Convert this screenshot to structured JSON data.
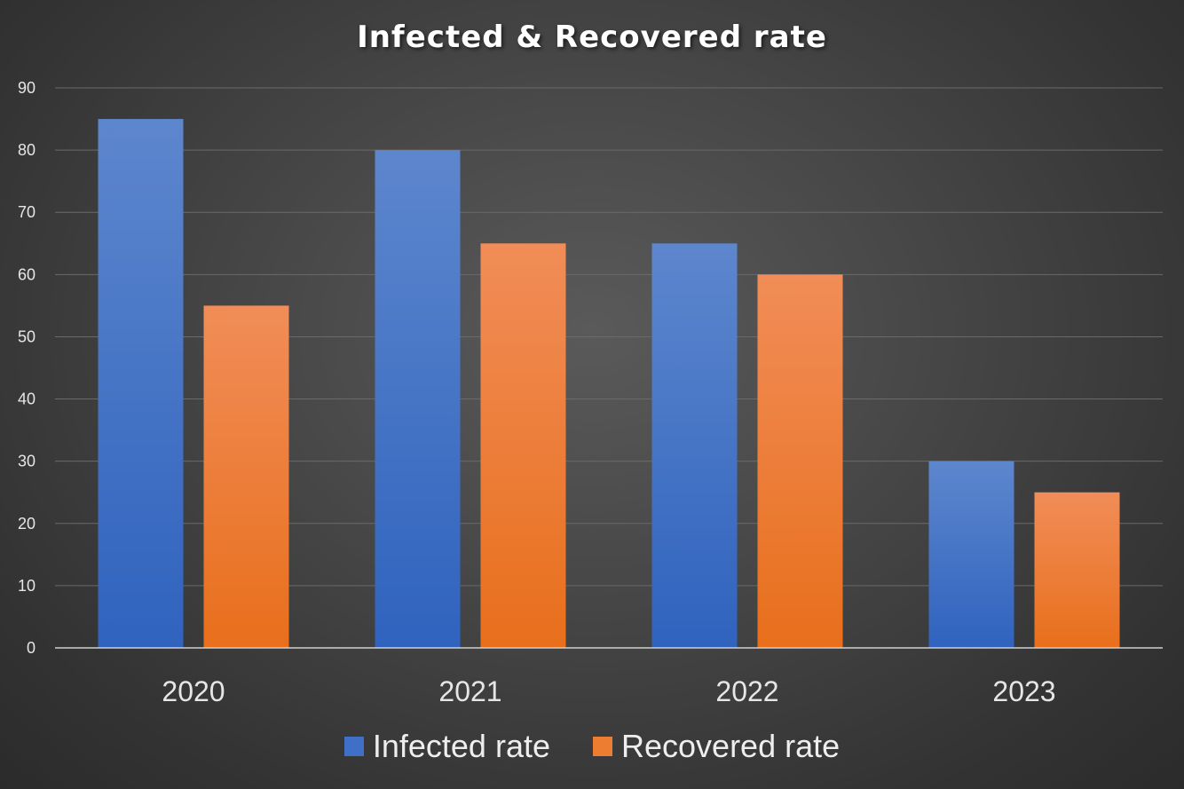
{
  "chart_data": {
    "type": "bar",
    "title": "Infected & Recovered rate",
    "categories": [
      "2020",
      "2021",
      "2022",
      "2023"
    ],
    "series": [
      {
        "name": "Infected rate",
        "values": [
          85,
          80,
          65,
          30
        ],
        "color": "#4472c4"
      },
      {
        "name": "Recovered rate",
        "values": [
          55,
          65,
          60,
          25
        ],
        "color": "#ed7d31"
      }
    ],
    "ylim": [
      0,
      90
    ],
    "yticks": [
      "0",
      "10",
      "20",
      "30",
      "40",
      "50",
      "60",
      "70",
      "80",
      "90"
    ],
    "grid": true,
    "legend_position": "bottom"
  }
}
